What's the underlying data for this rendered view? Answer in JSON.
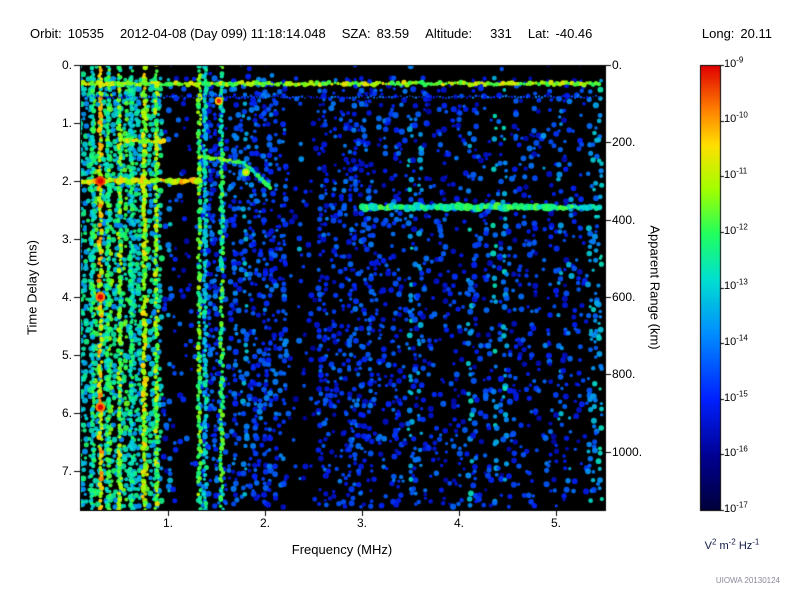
{
  "header": {
    "orbit_label": "Orbit:",
    "orbit": "10535",
    "datetime": "2012-04-08 (Day 099) 11:18:14.048",
    "sza_label": "SZA:",
    "sza": "83.59",
    "altitude_label": "Altitude:",
    "altitude": "331",
    "lat_label": "Lat:",
    "lat": "-40.46",
    "long_label": "Long:",
    "long": "20.11"
  },
  "axes": {
    "y_left": {
      "title": "Time Delay (ms)",
      "ticks": [
        "0.",
        "1.",
        "2.",
        "3.",
        "4.",
        "5.",
        "6.",
        "7."
      ],
      "values": [
        0,
        1,
        2,
        3,
        4,
        5,
        6,
        7
      ],
      "range": [
        0,
        7.67
      ]
    },
    "y_right": {
      "title": "Apparent Range (km)",
      "ticks": [
        "0.",
        "200.",
        "400.",
        "600.",
        "800.",
        "1000."
      ],
      "values": [
        0,
        200,
        400,
        600,
        800,
        1000
      ]
    },
    "x": {
      "title": "Frequency (MHz)",
      "ticks": [
        "1.",
        "2.",
        "3.",
        "4.",
        "5."
      ],
      "values": [
        1,
        2,
        3,
        4,
        5
      ],
      "range": [
        0.09,
        5.5
      ]
    }
  },
  "colorbar": {
    "base": "10",
    "exponents": [
      "-9",
      "-10",
      "-11",
      "-12",
      "-13",
      "-14",
      "-15",
      "-16",
      "-17"
    ],
    "unit": {
      "v": "V",
      "v_exp": "2",
      "m": " m",
      "m_exp": "-2",
      "hz": " Hz",
      "hz_exp": "-1"
    }
  },
  "watermark": "UIOWA 20130124",
  "chart_data": {
    "type": "heatmap",
    "x_label": "Frequency (MHz)",
    "y_label": "Time Delay (ms)",
    "y2_label": "Apparent Range (km)",
    "x_range": [
      0.09,
      5.5
    ],
    "y_range": [
      0,
      7.67
    ],
    "km_per_ms": 150,
    "z_range_exponents": [
      -17,
      -9
    ],
    "top_dark_band_ms": [
      0,
      0.22
    ],
    "regions": [
      {
        "f": [
          0.09,
          0.95
        ],
        "density": 0.88,
        "intensity": 0.5
      },
      {
        "f": [
          0.95,
          1.28
        ],
        "density": 0.15,
        "intensity": 0.26
      },
      {
        "f": [
          1.28,
          2.25
        ],
        "density": 0.5,
        "intensity": 0.3
      },
      {
        "f": [
          2.25,
          2.52
        ],
        "density": 0.1,
        "intensity": 0.24
      },
      {
        "f": [
          2.52,
          3.6
        ],
        "density": 0.42,
        "intensity": 0.28
      },
      {
        "f": [
          3.6,
          5.5
        ],
        "density": 0.3,
        "intensity": 0.26
      }
    ],
    "vertical_lines": [
      {
        "f": 0.22,
        "i": 0.55
      },
      {
        "f": 0.3,
        "i": 0.8
      },
      {
        "f": 0.38,
        "i": 0.6
      },
      {
        "f": 0.5,
        "i": 0.7
      },
      {
        "f": 0.62,
        "i": 0.55
      },
      {
        "f": 0.75,
        "i": 0.75
      },
      {
        "f": 0.88,
        "i": 0.7
      },
      {
        "f": 1.32,
        "i": 0.65
      },
      {
        "f": 1.38,
        "i": 0.5
      },
      {
        "f": 1.55,
        "i": 0.6
      }
    ],
    "horizontal_bands": [
      {
        "t": 0.32,
        "f1": 0.09,
        "f2": 5.45,
        "i": 0.72,
        "th": 4
      },
      {
        "t": 0.55,
        "f1": 0.09,
        "f2": 5.45,
        "i": 0.3,
        "th": 2
      },
      {
        "t": 2.0,
        "f1": 0.09,
        "f2": 1.35,
        "i": 0.78,
        "th": 5
      },
      {
        "t": 2.45,
        "f1": 3.0,
        "f2": 5.45,
        "i": 0.58,
        "th": 6
      }
    ],
    "trace_segments": [
      {
        "f1": 0.55,
        "t1": 1.3,
        "f2": 0.95,
        "t2": 1.32,
        "i": 0.75,
        "th": 4
      },
      {
        "f1": 1.35,
        "t1": 1.58,
        "f2": 1.78,
        "t2": 1.68,
        "i": 0.68,
        "th": 4
      },
      {
        "f1": 1.78,
        "t1": 1.68,
        "f2": 2.05,
        "t2": 2.12,
        "i": 0.58,
        "th": 4
      }
    ],
    "dots": [
      {
        "f": 0.3,
        "t": 2.0,
        "i": 0.95,
        "r": 5
      },
      {
        "f": 0.3,
        "t": 4.0,
        "i": 0.9,
        "r": 5
      },
      {
        "f": 0.3,
        "t": 5.9,
        "i": 0.9,
        "r": 5
      },
      {
        "f": 1.52,
        "t": 0.62,
        "i": 0.85,
        "r": 4
      },
      {
        "f": 1.8,
        "t": 1.85,
        "i": 0.7,
        "r": 4
      }
    ],
    "colormap_stops": [
      {
        "v": 0.0,
        "c": "#00003a"
      },
      {
        "v": 0.12,
        "c": "#000090"
      },
      {
        "v": 0.25,
        "c": "#0020ff"
      },
      {
        "v": 0.4,
        "c": "#0090ff"
      },
      {
        "v": 0.52,
        "c": "#00e0d0"
      },
      {
        "v": 0.62,
        "c": "#20ff60"
      },
      {
        "v": 0.72,
        "c": "#a0ff00"
      },
      {
        "v": 0.82,
        "c": "#ffe000"
      },
      {
        "v": 0.9,
        "c": "#ff8000"
      },
      {
        "v": 1.0,
        "c": "#e00000"
      }
    ]
  }
}
